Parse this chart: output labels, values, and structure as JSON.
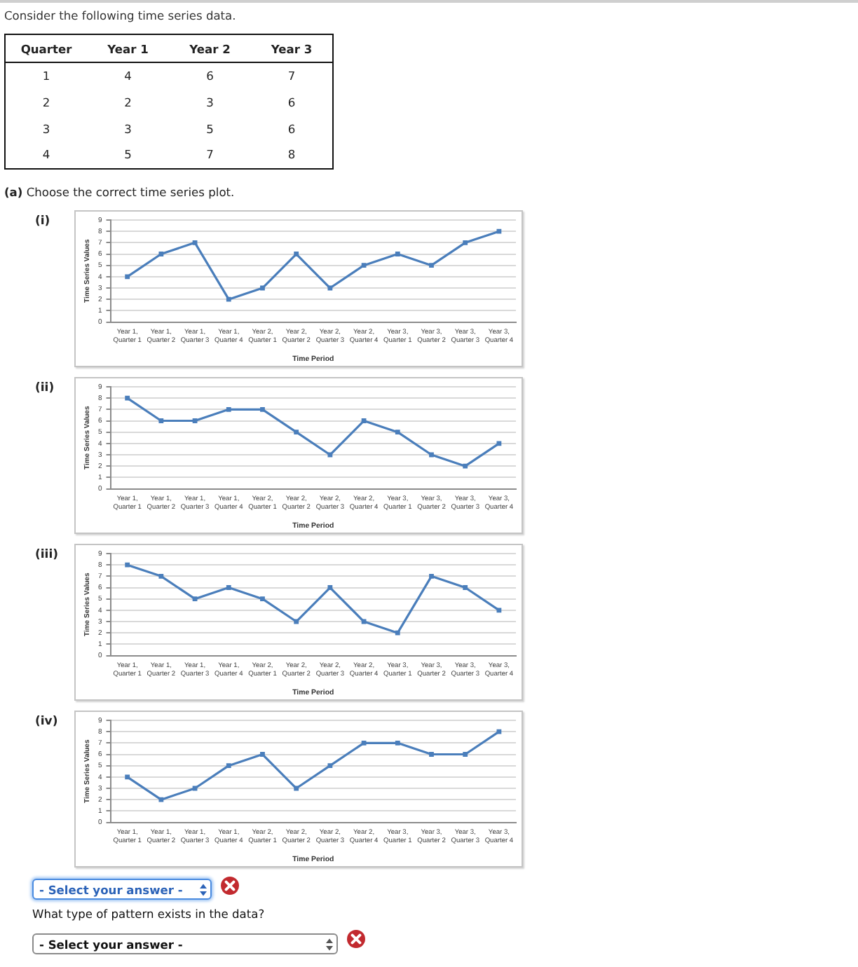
{
  "chart_data": [
    {
      "type": "heatmap",
      "title": "Consider the following time series data.",
      "ylabel": "Quarter",
      "categories": [
        "Year 1",
        "Year 2",
        "Year 3"
      ],
      "y_categories": [
        "1",
        "2",
        "3",
        "4"
      ],
      "cells": [
        [
          4,
          6,
          7
        ],
        [
          2,
          3,
          6
        ],
        [
          3,
          5,
          6
        ],
        [
          5,
          7,
          8
        ]
      ],
      "data_labels": true,
      "annotations": [
        "(a) Choose the correct time series plot."
      ]
    },
    {
      "type": "line",
      "title": "(i)",
      "categories": [
        "Year 1,\nQuarter 1",
        "Year 1,\nQuarter 2",
        "Year 1,\nQuarter 3",
        "Year 1,\nQuarter 4",
        "Year 2,\nQuarter 1",
        "Year 2,\nQuarter 2",
        "Year 2,\nQuarter 3",
        "Year 2,\nQuarter 4",
        "Year 3,\nQuarter 1",
        "Year 3,\nQuarter 2",
        "Year 3,\nQuarter 3",
        "Year 3,\nQuarter 4"
      ],
      "xlabel": "Time Period",
      "ylabel": "Time Series Values",
      "series": [
        {
          "color": "#4a7ebb",
          "values": [
            4,
            6,
            7,
            2,
            3,
            6,
            3,
            5,
            6,
            5,
            7,
            8
          ]
        }
      ],
      "ylim": [
        0,
        9
      ],
      "yticks": [
        0,
        1,
        2,
        3,
        4,
        5,
        6,
        7,
        8,
        9
      ],
      "grid": "y",
      "marker": "square"
    },
    {
      "type": "line",
      "title": "(ii)",
      "categories": [
        "Year 1,\nQuarter 1",
        "Year 1,\nQuarter 2",
        "Year 1,\nQuarter 3",
        "Year 1,\nQuarter 4",
        "Year 2,\nQuarter 1",
        "Year 2,\nQuarter 2",
        "Year 2,\nQuarter 3",
        "Year 2,\nQuarter 4",
        "Year 3,\nQuarter 1",
        "Year 3,\nQuarter 2",
        "Year 3,\nQuarter 3",
        "Year 3,\nQuarter 4"
      ],
      "xlabel": "Time Period",
      "ylabel": "Time Series Values",
      "series": [
        {
          "color": "#4a7ebb",
          "values": [
            8,
            6,
            6,
            7,
            7,
            5,
            3,
            6,
            5,
            3,
            2,
            4
          ]
        }
      ],
      "ylim": [
        0,
        9
      ],
      "yticks": [
        0,
        1,
        2,
        3,
        4,
        5,
        6,
        7,
        8,
        9
      ],
      "grid": "y",
      "marker": "square"
    },
    {
      "type": "line",
      "title": "(iii)",
      "categories": [
        "Year 1,\nQuarter 1",
        "Year 1,\nQuarter 2",
        "Year 1,\nQuarter 3",
        "Year 1,\nQuarter 4",
        "Year 2,\nQuarter 1",
        "Year 2,\nQuarter 2",
        "Year 2,\nQuarter 3",
        "Year 2,\nQuarter 4",
        "Year 3,\nQuarter 1",
        "Year 3,\nQuarter 2",
        "Year 3,\nQuarter 3",
        "Year 3,\nQuarter 4"
      ],
      "xlabel": "Time Period",
      "ylabel": "Time Series Values",
      "series": [
        {
          "color": "#4a7ebb",
          "values": [
            8,
            7,
            5,
            6,
            5,
            3,
            6,
            3,
            2,
            7,
            6,
            4
          ]
        }
      ],
      "ylim": [
        0,
        9
      ],
      "yticks": [
        0,
        1,
        2,
        3,
        4,
        5,
        6,
        7,
        8,
        9
      ],
      "grid": "y",
      "marker": "square"
    },
    {
      "type": "line",
      "title": "(iv)",
      "categories": [
        "Year 1,\nQuarter 1",
        "Year 1,\nQuarter 2",
        "Year 1,\nQuarter 3",
        "Year 1,\nQuarter 4",
        "Year 2,\nQuarter 1",
        "Year 2,\nQuarter 2",
        "Year 2,\nQuarter 3",
        "Year 2,\nQuarter 4",
        "Year 3,\nQuarter 1",
        "Year 3,\nQuarter 2",
        "Year 3,\nQuarter 3",
        "Year 3,\nQuarter 4"
      ],
      "xlabel": "Time Period",
      "ylabel": "Time Series Values",
      "series": [
        {
          "color": "#4a7ebb",
          "values": [
            4,
            2,
            3,
            5,
            6,
            3,
            5,
            7,
            7,
            6,
            6,
            8
          ]
        }
      ],
      "ylim": [
        0,
        9
      ],
      "yticks": [
        0,
        1,
        2,
        3,
        4,
        5,
        6,
        7,
        8,
        9
      ],
      "grid": "y",
      "marker": "square"
    },
    {
      "type": "other",
      "annotations": [
        "- Select your answer -"
      ]
    },
    {
      "type": "other",
      "title": "What type of pattern exists in the data?",
      "annotations": [
        "- Select your answer -"
      ]
    }
  ]
}
